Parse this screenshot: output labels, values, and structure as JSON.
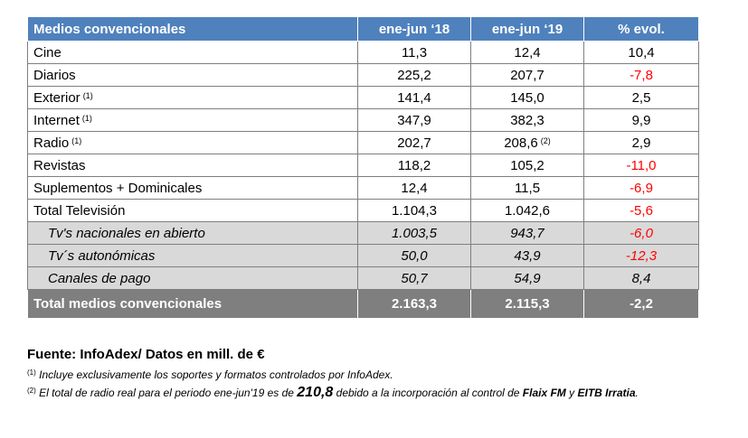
{
  "table": {
    "headers": [
      "Medios convencionales",
      "ene-jun ‘18",
      "ene-jun ‘19",
      "% evol."
    ],
    "rows": [
      {
        "label": "Cine",
        "fn": "",
        "v18": "11,3",
        "v19": "12,4",
        "v19fn": "",
        "evol": "10,4",
        "neg": false,
        "sub": false
      },
      {
        "label": "Diarios",
        "fn": "",
        "v18": "225,2",
        "v19": "207,7",
        "v19fn": "",
        "evol": "-7,8",
        "neg": true,
        "sub": false
      },
      {
        "label": "Exterior",
        "fn": "(1)",
        "v18": "141,4",
        "v19": "145,0",
        "v19fn": "",
        "evol": "2,5",
        "neg": false,
        "sub": false
      },
      {
        "label": "Internet",
        "fn": "(1)",
        "v18": "347,9",
        "v19": "382,3",
        "v19fn": "",
        "evol": "9,9",
        "neg": false,
        "sub": false
      },
      {
        "label": "Radio",
        "fn": "(1)",
        "v18": "202,7",
        "v19": "208,6",
        "v19fn": "(2)",
        "evol": "2,9",
        "neg": false,
        "sub": false
      },
      {
        "label": "Revistas",
        "fn": "",
        "v18": "118,2",
        "v19": "105,2",
        "v19fn": "",
        "evol": "-11,0",
        "neg": true,
        "sub": false
      },
      {
        "label": "Suplementos + Dominicales",
        "fn": "",
        "v18": "12,4",
        "v19": "11,5",
        "v19fn": "",
        "evol": "-6,9",
        "neg": true,
        "sub": false
      },
      {
        "label": "Total Televisión",
        "fn": "",
        "v18": "1.104,3",
        "v19": "1.042,6",
        "v19fn": "",
        "evol": "-5,6",
        "neg": true,
        "sub": false
      },
      {
        "label": "Tv's nacionales en abierto",
        "fn": "",
        "v18": "1.003,5",
        "v19": "943,7",
        "v19fn": "",
        "evol": "-6,0",
        "neg": true,
        "sub": true
      },
      {
        "label": "Tv´s autonómicas",
        "fn": "",
        "v18": "50,0",
        "v19": "43,9",
        "v19fn": "",
        "evol": "-12,3",
        "neg": true,
        "sub": true
      },
      {
        "label": "Canales de pago",
        "fn": "",
        "v18": "50,7",
        "v19": "54,9",
        "v19fn": "",
        "evol": "8,4",
        "neg": false,
        "sub": true
      }
    ],
    "total": {
      "label": "Total medios convencionales",
      "v18": "2.163,3",
      "v19": "2.115,3",
      "evol": "-2,2"
    }
  },
  "footer": {
    "source": "Fuente: InfoAdex/ Datos en mill. de €",
    "note1_mark": "(1)",
    "note1_text": "Incluye exclusivamente los soportes y formatos controlados por InfoAdex.",
    "note2_mark": "(2)",
    "note2_text_a": "El total de radio real para el periodo ene-jun'19 es de ",
    "note2_value": "210,8",
    "note2_text_b": " debido a la incorporación al control de ",
    "note2_brand1": "Flaix FM",
    "note2_text_c": " y ",
    "note2_brand2": "EITB Irratia",
    "note2_text_d": "."
  }
}
